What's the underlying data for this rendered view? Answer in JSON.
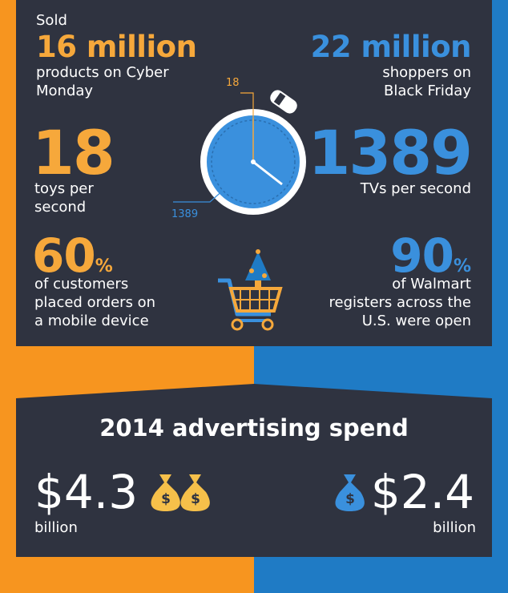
{
  "stats": [
    {
      "prefix": "Sold",
      "value": "16 million",
      "lines": [
        "products on Cyber",
        "Monday"
      ]
    },
    {
      "value": "22 million",
      "lines": [
        "shoppers on",
        "Black Friday"
      ]
    },
    {
      "value": "18",
      "lines": [
        "toys per",
        "second"
      ]
    },
    {
      "value": "1389",
      "lines": [
        "TVs per second"
      ]
    },
    {
      "value": "60",
      "unit": "%",
      "lines": [
        "of customers",
        "placed orders on",
        "a mobile device"
      ]
    },
    {
      "value": "90",
      "unit": "%",
      "lines": [
        "of Walmart",
        "registers across the",
        "U.S. were open"
      ]
    }
  ],
  "stopwatch": {
    "label_a": "18",
    "label_b": "1389"
  },
  "advertising": {
    "title": "2014 advertising spend",
    "left": {
      "value": "$4.3",
      "unit": "billion"
    },
    "right": {
      "value": "$2.4",
      "unit": "billion"
    }
  }
}
